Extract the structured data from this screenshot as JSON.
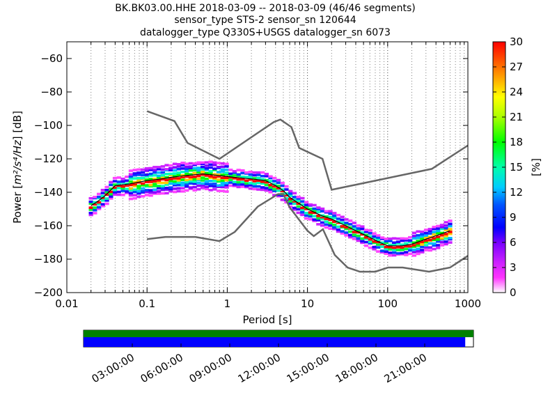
{
  "title_lines": [
    "BK.BK03.00.HHE   2018-03-09 -- 2018-03-09  (46/46 segments)",
    "sensor_type STS-2 sensor_sn 120644",
    "datalogger_type Q330S+USGS datalogger_sn 6073"
  ],
  "chart_data": {
    "type": "heatmap",
    "xlabel": "Period [s]",
    "ylabel_prefix": "Power [",
    "ylabel_unit": "m²/s⁴/Hz",
    "ylabel_suffix": "] [dB]",
    "x_scale": "log",
    "xlim": [
      0.01,
      1000
    ],
    "ylim": [
      -200,
      -50
    ],
    "x_ticks": [
      0.01,
      0.1,
      1,
      10,
      100,
      1000
    ],
    "x_tick_labels": [
      "0.01",
      "0.1",
      "1",
      "10",
      "100",
      "1000"
    ],
    "y_ticks": [
      -60,
      -80,
      -100,
      -120,
      -140,
      -160,
      -180,
      -200
    ],
    "y_tick_labels": [
      "−60",
      "−80",
      "−100",
      "−120",
      "−140",
      "−160",
      "−180",
      "−200"
    ],
    "grid": "dotted vertical",
    "colorbar": {
      "label": "[%]",
      "range": [
        0,
        30
      ],
      "ticks": [
        0,
        3,
        6,
        9,
        12,
        15,
        18,
        21,
        24,
        27,
        30
      ]
    },
    "noise_model_high": {
      "x": [
        0.1,
        0.22,
        0.32,
        0.8,
        3.8,
        4.6,
        6.3,
        7.9,
        15.4,
        20,
        354.8,
        1000
      ],
      "y": [
        -91.5,
        -97.4,
        -110.5,
        -120,
        -98,
        -96.5,
        -101,
        -113.5,
        -120,
        -138.5,
        -126,
        -112
      ]
    },
    "noise_model_low": {
      "x": [
        0.1,
        0.17,
        0.4,
        0.8,
        1.24,
        2.4,
        4.3,
        5,
        6,
        10,
        12,
        15.6,
        21.9,
        31.6,
        45,
        70,
        101,
        154,
        328,
        600,
        1000
      ],
      "y": [
        -168,
        -166.7,
        -166.7,
        -169.2,
        -163.7,
        -148.6,
        -141.1,
        -141.1,
        -149,
        -163,
        -166.2,
        -162.1,
        -177.5,
        -185,
        -187.5,
        -187.5,
        -185,
        -185,
        -187.5,
        -185,
        -178
      ]
    },
    "mode_curve": {
      "x": [
        0.02,
        0.025,
        0.03,
        0.04,
        0.06,
        0.1,
        0.15,
        0.2,
        0.3,
        0.5,
        0.8,
        1.2,
        2,
        3,
        4,
        5,
        6,
        8,
        10,
        15,
        20,
        30,
        40,
        60,
        80,
        100,
        150,
        200,
        300,
        400,
        600
      ],
      "y": [
        -148,
        -145,
        -142,
        -136,
        -135,
        -133,
        -132,
        -131,
        -130,
        -129,
        -130,
        -131,
        -132,
        -133,
        -136,
        -139,
        -143,
        -147,
        -150,
        -154,
        -156,
        -160,
        -163,
        -167,
        -170,
        -172,
        -172,
        -171,
        -168,
        -166,
        -163
      ]
    },
    "timeline": {
      "tick_labels": [
        "03:00:00",
        "06:00:00",
        "09:00:00",
        "12:00:00",
        "15:00:00",
        "18:00:00",
        "21:00:00"
      ],
      "coverage_fraction": 0.979,
      "colors": {
        "data": "#0000ff",
        "gap_bar": "#008000",
        "background": "#ffffff"
      }
    }
  }
}
